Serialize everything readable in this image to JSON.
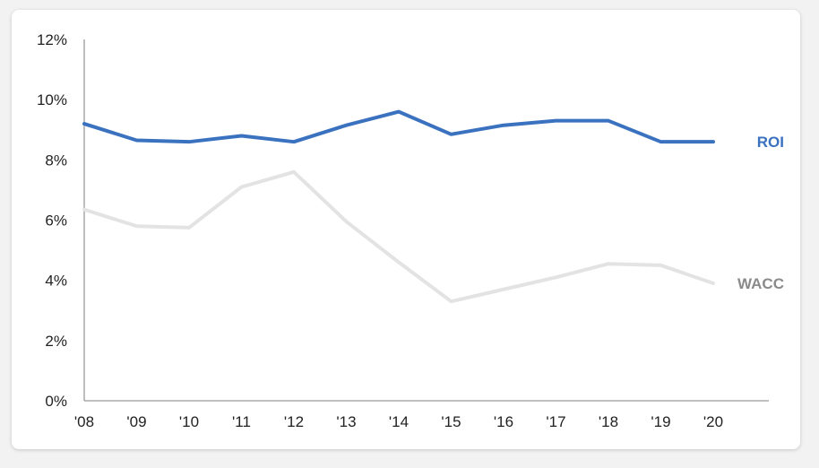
{
  "chart_data": {
    "type": "line",
    "categories": [
      "'08",
      "'09",
      "'10",
      "'11",
      "'12",
      "'13",
      "'14",
      "'15",
      "'16",
      "'17",
      "'18",
      "'19",
      "'20"
    ],
    "y_tick_labels": [
      "0%",
      "2%",
      "4%",
      "6%",
      "8%",
      "10%",
      "12%"
    ],
    "ylim": [
      0,
      12
    ],
    "y_unit": "%",
    "grid": false,
    "legend": "inline-right",
    "series": [
      {
        "name": "ROI",
        "color": "#3a72c0",
        "values": [
          9.2,
          8.65,
          8.6,
          8.8,
          8.6,
          9.15,
          9.6,
          8.85,
          9.15,
          9.3,
          9.3,
          8.6,
          8.6
        ]
      },
      {
        "name": "WACC",
        "color": "#e3e3e3",
        "label_color": "#8a8a8a",
        "values": [
          6.35,
          5.8,
          5.75,
          7.1,
          7.6,
          5.95,
          4.6,
          3.3,
          3.7,
          4.1,
          4.55,
          4.5,
          3.9
        ]
      }
    ]
  }
}
